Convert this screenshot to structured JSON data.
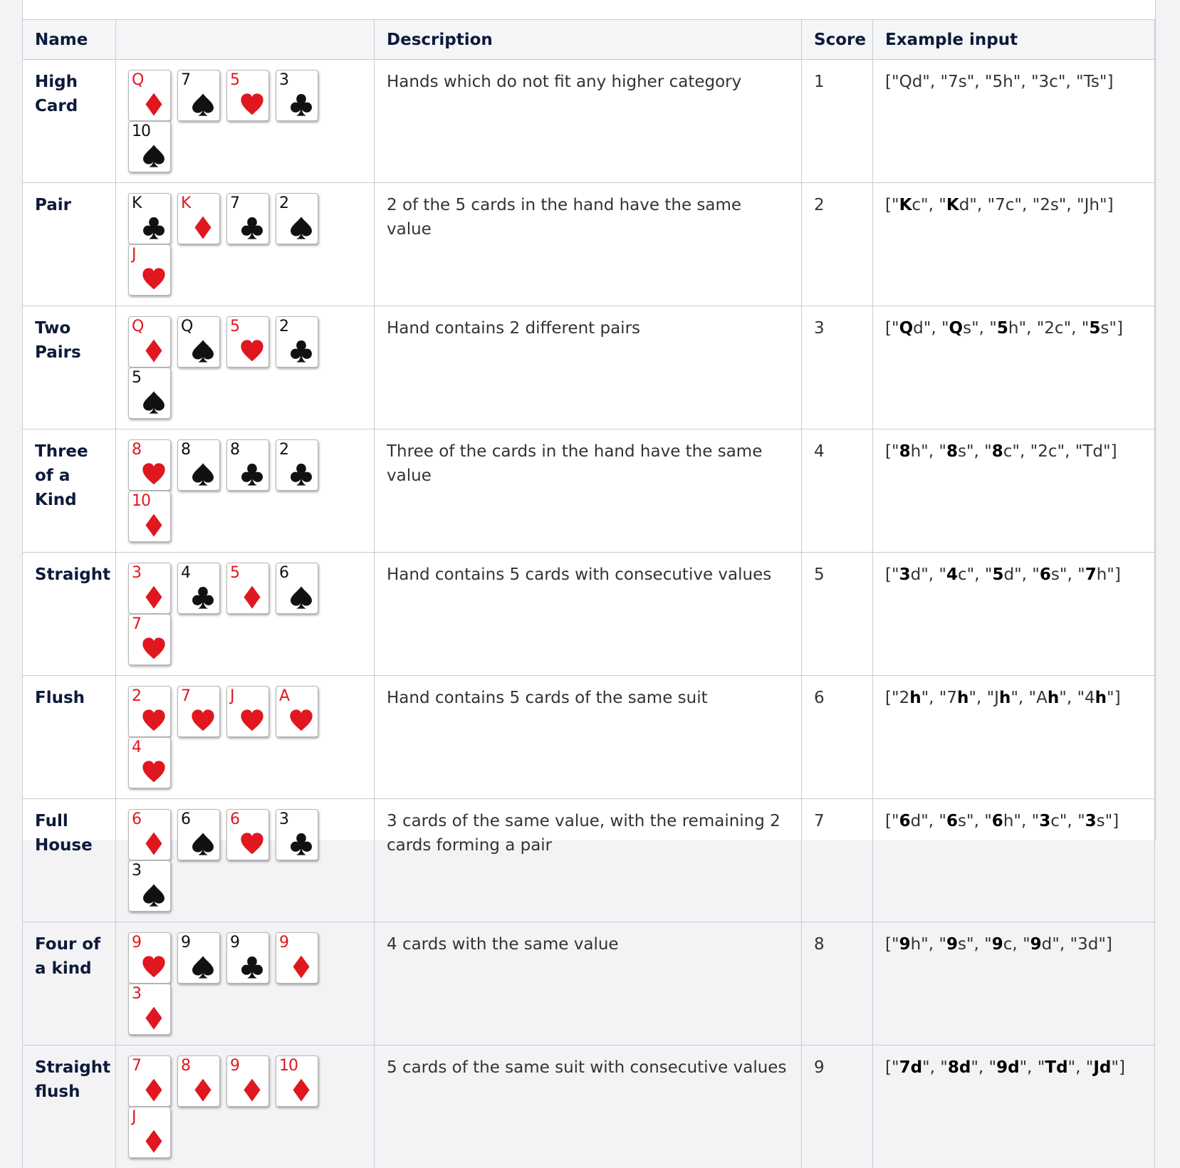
{
  "columns": [
    "Name",
    "",
    "Description",
    "Score",
    "Example input"
  ],
  "colors": {
    "red": "#e0171e",
    "black": "#111111"
  },
  "rows": [
    {
      "name": "High Card",
      "description": "Hands which do not fit any higher category",
      "score": "1",
      "cards": [
        [
          "Q",
          "diamond"
        ],
        [
          "7",
          "spade"
        ],
        [
          "5",
          "heart"
        ],
        [
          "3",
          "club"
        ],
        [
          "10",
          "spade"
        ]
      ],
      "example": [
        [
          "\"",
          "Q",
          "d\", "
        ],
        [
          "\"",
          "7",
          "s\", "
        ],
        [
          "\"",
          "5",
          "h\", "
        ],
        [
          "\"",
          "3",
          "c\", "
        ],
        [
          "\"",
          "T",
          "s\""
        ]
      ],
      "bold_mode": "none"
    },
    {
      "name": "Pair",
      "description": "2 of the 5 cards in the hand have the same value",
      "score": "2",
      "cards": [
        [
          "K",
          "club"
        ],
        [
          "K",
          "diamond"
        ],
        [
          "7",
          "club"
        ],
        [
          "2",
          "spade"
        ],
        [
          "J",
          "heart"
        ]
      ],
      "example": [
        [
          "\"",
          "K",
          "c\", "
        ],
        [
          "\"",
          "K",
          "d\", "
        ],
        [
          "\"",
          "7",
          "c\", "
        ],
        [
          "\"",
          "2",
          "s\", "
        ],
        [
          "\"",
          "J",
          "h\""
        ]
      ],
      "bold": [
        0,
        1
      ]
    },
    {
      "name": "Two Pairs",
      "description": "Hand contains 2 different pairs",
      "score": "3",
      "cards": [
        [
          "Q",
          "diamond"
        ],
        [
          "Q",
          "spade"
        ],
        [
          "5",
          "heart"
        ],
        [
          "2",
          "club"
        ],
        [
          "5",
          "spade"
        ]
      ],
      "example": [
        [
          "\"",
          "Q",
          "d\", "
        ],
        [
          "\"",
          "Q",
          "s\", "
        ],
        [
          "\"",
          "5",
          "h\", "
        ],
        [
          "\"",
          "2",
          "c\", "
        ],
        [
          "\"",
          "5",
          "s\""
        ]
      ],
      "bold": [
        0,
        1,
        2,
        4
      ]
    },
    {
      "name": "Three of a Kind",
      "description": "Three of the cards in the hand have the same value",
      "score": "4",
      "cards": [
        [
          "8",
          "heart"
        ],
        [
          "8",
          "spade"
        ],
        [
          "8",
          "club"
        ],
        [
          "2",
          "club"
        ],
        [
          "10",
          "diamond"
        ]
      ],
      "example": [
        [
          "\"",
          "8",
          "h\", "
        ],
        [
          "\"",
          "8",
          "s\", "
        ],
        [
          "\"",
          "8",
          "c\", "
        ],
        [
          "\"",
          "2",
          "c\", "
        ],
        [
          "\"",
          "T",
          "d\""
        ]
      ],
      "bold": [
        0,
        1,
        2
      ]
    },
    {
      "name": "Straight",
      "description": "Hand contains 5 cards with consecutive values",
      "score": "5",
      "cards": [
        [
          "3",
          "diamond"
        ],
        [
          "4",
          "club"
        ],
        [
          "5",
          "diamond"
        ],
        [
          "6",
          "spade"
        ],
        [
          "7",
          "heart"
        ]
      ],
      "example": [
        [
          "\"",
          "3",
          "d\", "
        ],
        [
          "\"",
          "4",
          "c\", "
        ],
        [
          "\"",
          "5",
          "d\", "
        ],
        [
          "\"",
          "6",
          "s\", "
        ],
        [
          "\"",
          "7",
          "h\""
        ]
      ],
      "bold": [
        0,
        1,
        2,
        3,
        4
      ]
    },
    {
      "name": "Flush",
      "description": "Hand contains 5 cards of the same suit",
      "score": "6",
      "cards": [
        [
          "2",
          "heart"
        ],
        [
          "7",
          "heart"
        ],
        [
          "J",
          "heart"
        ],
        [
          "A",
          "heart"
        ],
        [
          "4",
          "heart"
        ]
      ],
      "example": [
        [
          "\"2",
          "h",
          "\", "
        ],
        [
          "\"7",
          "h",
          "\", "
        ],
        [
          "\"J",
          "h",
          "\", "
        ],
        [
          "\"A",
          "h",
          "\", "
        ],
        [
          "\"4",
          "h",
          "\""
        ]
      ],
      "bold": [
        0,
        1,
        2,
        3,
        4
      ]
    },
    {
      "name": "Full House",
      "description": "3 cards of the same value, with the remaining 2 cards forming a pair",
      "score": "7",
      "cards": [
        [
          "6",
          "diamond"
        ],
        [
          "6",
          "spade"
        ],
        [
          "6",
          "heart"
        ],
        [
          "3",
          "club"
        ],
        [
          "3",
          "spade"
        ]
      ],
      "example": [
        [
          "\"",
          "6",
          "d\", "
        ],
        [
          "\"",
          "6",
          "s\", "
        ],
        [
          "\"",
          "6",
          "h\", "
        ],
        [
          "\"",
          "3",
          "c\", "
        ],
        [
          "\"",
          "3",
          "s\""
        ]
      ],
      "bold": [
        0,
        1,
        2,
        3,
        4
      ]
    },
    {
      "name": "Four of a kind",
      "description": "4 cards with the same value",
      "score": "8",
      "cards": [
        [
          "9",
          "heart"
        ],
        [
          "9",
          "spade"
        ],
        [
          "9",
          "club"
        ],
        [
          "9",
          "diamond"
        ],
        [
          "3",
          "diamond"
        ]
      ],
      "example": [
        [
          "\"",
          "9",
          "h\", "
        ],
        [
          "\"",
          "9",
          "s\", "
        ],
        [
          "\"",
          "9",
          "c, "
        ],
        [
          "\"",
          "9",
          "d\", "
        ],
        [
          "\"",
          "3",
          "d\""
        ]
      ],
      "bold": [
        0,
        1,
        2,
        3
      ]
    },
    {
      "name": "Straight flush",
      "description": "5 cards of the same suit with consecutive values",
      "score": "9",
      "cards": [
        [
          "7",
          "diamond"
        ],
        [
          "8",
          "diamond"
        ],
        [
          "9",
          "diamond"
        ],
        [
          "10",
          "diamond"
        ],
        [
          "J",
          "diamond"
        ]
      ],
      "example": [
        [
          "\"",
          "7d",
          "\", "
        ],
        [
          "\"",
          "8d",
          "\", "
        ],
        [
          "\"",
          "9d",
          "\", "
        ],
        [
          "\"",
          "Td",
          "\", "
        ],
        [
          "\"",
          "Jd",
          "\""
        ]
      ],
      "bold": [
        0,
        1,
        2,
        3,
        4
      ]
    }
  ]
}
